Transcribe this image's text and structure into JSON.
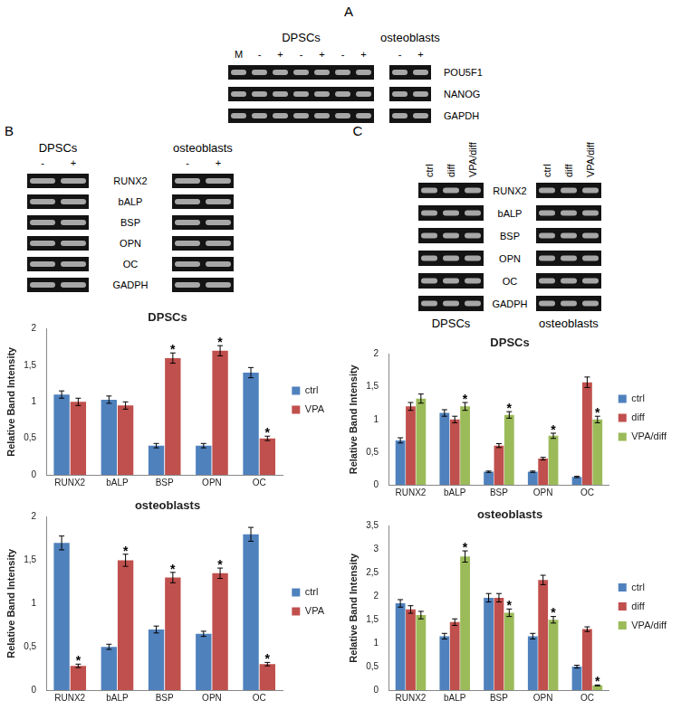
{
  "panels": [
    {
      "label": "A",
      "groups": [
        {
          "title": "DPSCs",
          "lanes": [
            "M",
            "-",
            "+",
            "-",
            "+",
            "-",
            "+"
          ]
        },
        {
          "title": "osteoblasts",
          "lanes": [
            "-",
            "+"
          ]
        }
      ],
      "rows": [
        "POU5F1",
        "NANOG",
        "GAPDH"
      ]
    },
    {
      "label": "B",
      "groups": [
        {
          "title": "DPSCs",
          "lanes": [
            "-",
            "+"
          ]
        },
        {
          "title": "osteoblasts",
          "lanes": [
            "-",
            "+"
          ]
        }
      ],
      "rows": [
        "RUNX2",
        "bALP",
        "BSP",
        "OPN",
        "OC",
        "GADPH"
      ]
    },
    {
      "label": "C",
      "groups": [
        {
          "title": "DPSCs",
          "lanes": [
            "ctrl",
            "diff",
            "VPA/diff"
          ]
        },
        {
          "title": "osteoblasts",
          "lanes": [
            "ctrl",
            "diff",
            "VPA/diff"
          ]
        }
      ],
      "rows": [
        "RUNX2",
        "bALP",
        "BSP",
        "OPN",
        "OC",
        "GADPH"
      ]
    }
  ],
  "chart_data": [
    {
      "type": "bar",
      "title": "DPSCs",
      "y_label": "Relative Band Intensity",
      "categories": [
        "RUNX2",
        "bALP",
        "BSP",
        "OPN",
        "OC"
      ],
      "series": [
        {
          "name": "ctrl",
          "color": "#4f81bd",
          "values": [
            1.1,
            1.03,
            0.4,
            0.4,
            1.4
          ],
          "errors": [
            0.05,
            0.05,
            0.03,
            0.03,
            0.07
          ],
          "significance": [
            null,
            null,
            null,
            null,
            null
          ]
        },
        {
          "name": "VPA",
          "color": "#c0504d",
          "values": [
            1.0,
            0.95,
            1.6,
            1.7,
            0.5
          ],
          "errors": [
            0.05,
            0.05,
            0.07,
            0.07,
            0.03
          ],
          "significance": [
            null,
            null,
            "*",
            "*",
            "*"
          ]
        }
      ],
      "ylim": [
        0,
        2
      ],
      "yticks": [
        0,
        {
          "value": 0.5,
          "label": "0,5"
        },
        1,
        {
          "value": 1.5,
          "label": "1,5"
        },
        2
      ],
      "grid": false,
      "legend": "right"
    },
    {
      "type": "bar",
      "title": "osteoblasts",
      "y_label": "Relative Band Intensity",
      "categories": [
        "RUNX2",
        "bALP",
        "BSP",
        "OPN",
        "OC"
      ],
      "series": [
        {
          "name": "ctrl",
          "color": "#4f81bd",
          "values": [
            1.7,
            0.5,
            0.7,
            0.65,
            1.8
          ],
          "errors": [
            0.08,
            0.03,
            0.04,
            0.03,
            0.08
          ],
          "significance": [
            null,
            null,
            null,
            null,
            null
          ]
        },
        {
          "name": "VPA",
          "color": "#c0504d",
          "values": [
            0.28,
            1.5,
            1.3,
            1.35,
            0.3
          ],
          "errors": [
            0.02,
            0.07,
            0.06,
            0.06,
            0.02
          ],
          "significance": [
            "*",
            "*",
            "*",
            "*",
            "*"
          ]
        }
      ],
      "ylim": [
        0,
        2
      ],
      "yticks": [
        0,
        {
          "value": 0.5,
          "label": "0,5"
        },
        1,
        {
          "value": 1.5,
          "label": "1,5"
        },
        2
      ],
      "grid": false,
      "legend": "right"
    },
    {
      "type": "bar",
      "title": "DPSCs",
      "y_label": "Relative Band Intensity",
      "categories": [
        "RUNX2",
        "bALP",
        "BSP",
        "OPN",
        "OC"
      ],
      "series": [
        {
          "name": "ctrl",
          "color": "#4f81bd",
          "values": [
            0.68,
            1.1,
            0.2,
            0.2,
            0.12
          ],
          "errors": [
            0.04,
            0.05,
            0.01,
            0.01,
            0.01
          ],
          "significance": [
            null,
            null,
            null,
            null,
            null
          ]
        },
        {
          "name": "diff",
          "color": "#c0504d",
          "values": [
            1.2,
            1.0,
            0.6,
            0.4,
            1.57
          ],
          "errors": [
            0.06,
            0.05,
            0.03,
            0.02,
            0.08
          ],
          "significance": [
            null,
            null,
            null,
            null,
            null
          ]
        },
        {
          "name": "VPA/diff",
          "color": "#9bbb59",
          "values": [
            1.32,
            1.2,
            1.07,
            0.75,
            1.0
          ],
          "errors": [
            0.07,
            0.06,
            0.05,
            0.04,
            0.05
          ],
          "significance": [
            null,
            "*",
            "*",
            "*",
            "*"
          ]
        }
      ],
      "ylim": [
        0,
        2
      ],
      "yticks": [
        0,
        {
          "value": 0.5,
          "label": "0,5"
        },
        1,
        {
          "value": 1.5,
          "label": "1,5"
        },
        2
      ],
      "grid": false,
      "legend": "right"
    },
    {
      "type": "bar",
      "title": "osteoblasts",
      "y_label": "Relative Band Intensity",
      "categories": [
        "RUNX2",
        "bALP",
        "BSP",
        "OPN",
        "OC"
      ],
      "series": [
        {
          "name": "ctrl",
          "color": "#4f81bd",
          "values": [
            1.85,
            1.15,
            1.97,
            1.15,
            0.5
          ],
          "errors": [
            0.08,
            0.06,
            0.09,
            0.06,
            0.03
          ],
          "significance": [
            null,
            null,
            null,
            null,
            null
          ]
        },
        {
          "name": "diff",
          "color": "#c0504d",
          "values": [
            1.72,
            1.45,
            1.97,
            2.35,
            1.3
          ],
          "errors": [
            0.08,
            0.07,
            0.09,
            0.1,
            0.05
          ],
          "significance": [
            null,
            null,
            null,
            null,
            null
          ]
        },
        {
          "name": "VPA/diff",
          "color": "#9bbb59",
          "values": [
            1.6,
            2.85,
            1.65,
            1.5,
            0.1
          ],
          "errors": [
            0.08,
            0.12,
            0.08,
            0.07,
            0.01
          ],
          "significance": [
            null,
            "*",
            "*",
            "*",
            "*"
          ]
        }
      ],
      "ylim": [
        0,
        3.5
      ],
      "yticks": [
        0,
        {
          "value": 0.5,
          "label": "0,5"
        },
        1,
        {
          "value": 1.5,
          "label": "1,5"
        },
        2,
        {
          "value": 2.5,
          "label": "2,5"
        },
        3,
        {
          "value": 3.5,
          "label": "3,5"
        }
      ],
      "grid": false,
      "legend": "right"
    }
  ]
}
